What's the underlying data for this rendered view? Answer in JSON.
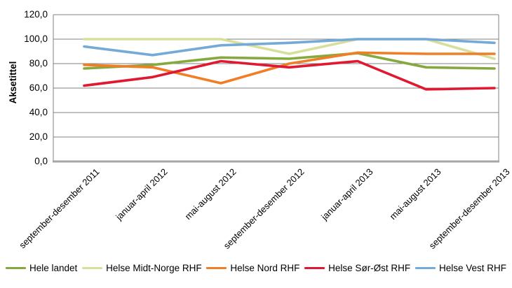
{
  "chart_data": {
    "type": "line",
    "title": "",
    "xlabel": "",
    "ylabel": "Aksetittel",
    "ylim": [
      0,
      120
    ],
    "grid": true,
    "legend_position": "bottom",
    "grid_color": "#808080",
    "axis_color": "#a6a6a6",
    "yticks": [
      "120,0",
      "100,0",
      "80,0",
      "60,0",
      "40,0",
      "20,0",
      "0,0"
    ],
    "ytick_values": [
      120,
      100,
      80,
      60,
      40,
      20,
      0
    ],
    "categories": [
      "september-desember 2011",
      "januar-april 2012",
      "mai-august 2012",
      "september-desember 2012",
      "januar-april 2013",
      "mai-august 2013",
      "september-desember 2013"
    ],
    "series": [
      {
        "name": "Hele landet",
        "color": "#86a93f",
        "values": [
          76,
          79,
          85,
          84,
          88.5,
          77,
          76
        ]
      },
      {
        "name": "Helse Midt-Norge RHF",
        "color": "#d8df9b",
        "values": [
          100,
          100,
          100,
          88,
          100,
          100,
          84
        ]
      },
      {
        "name": "Helse Nord RHF",
        "color": "#f07e27",
        "values": [
          79,
          77,
          64,
          80,
          89,
          88,
          88
        ]
      },
      {
        "name": "Helse Sør-Øst RHF",
        "color": "#e01932",
        "values": [
          62,
          69,
          82,
          77,
          82,
          59,
          60
        ]
      },
      {
        "name": "Helse Vest RHF",
        "color": "#74a9d8",
        "values": [
          94,
          87,
          95,
          97,
          100,
          100,
          97
        ]
      }
    ]
  }
}
